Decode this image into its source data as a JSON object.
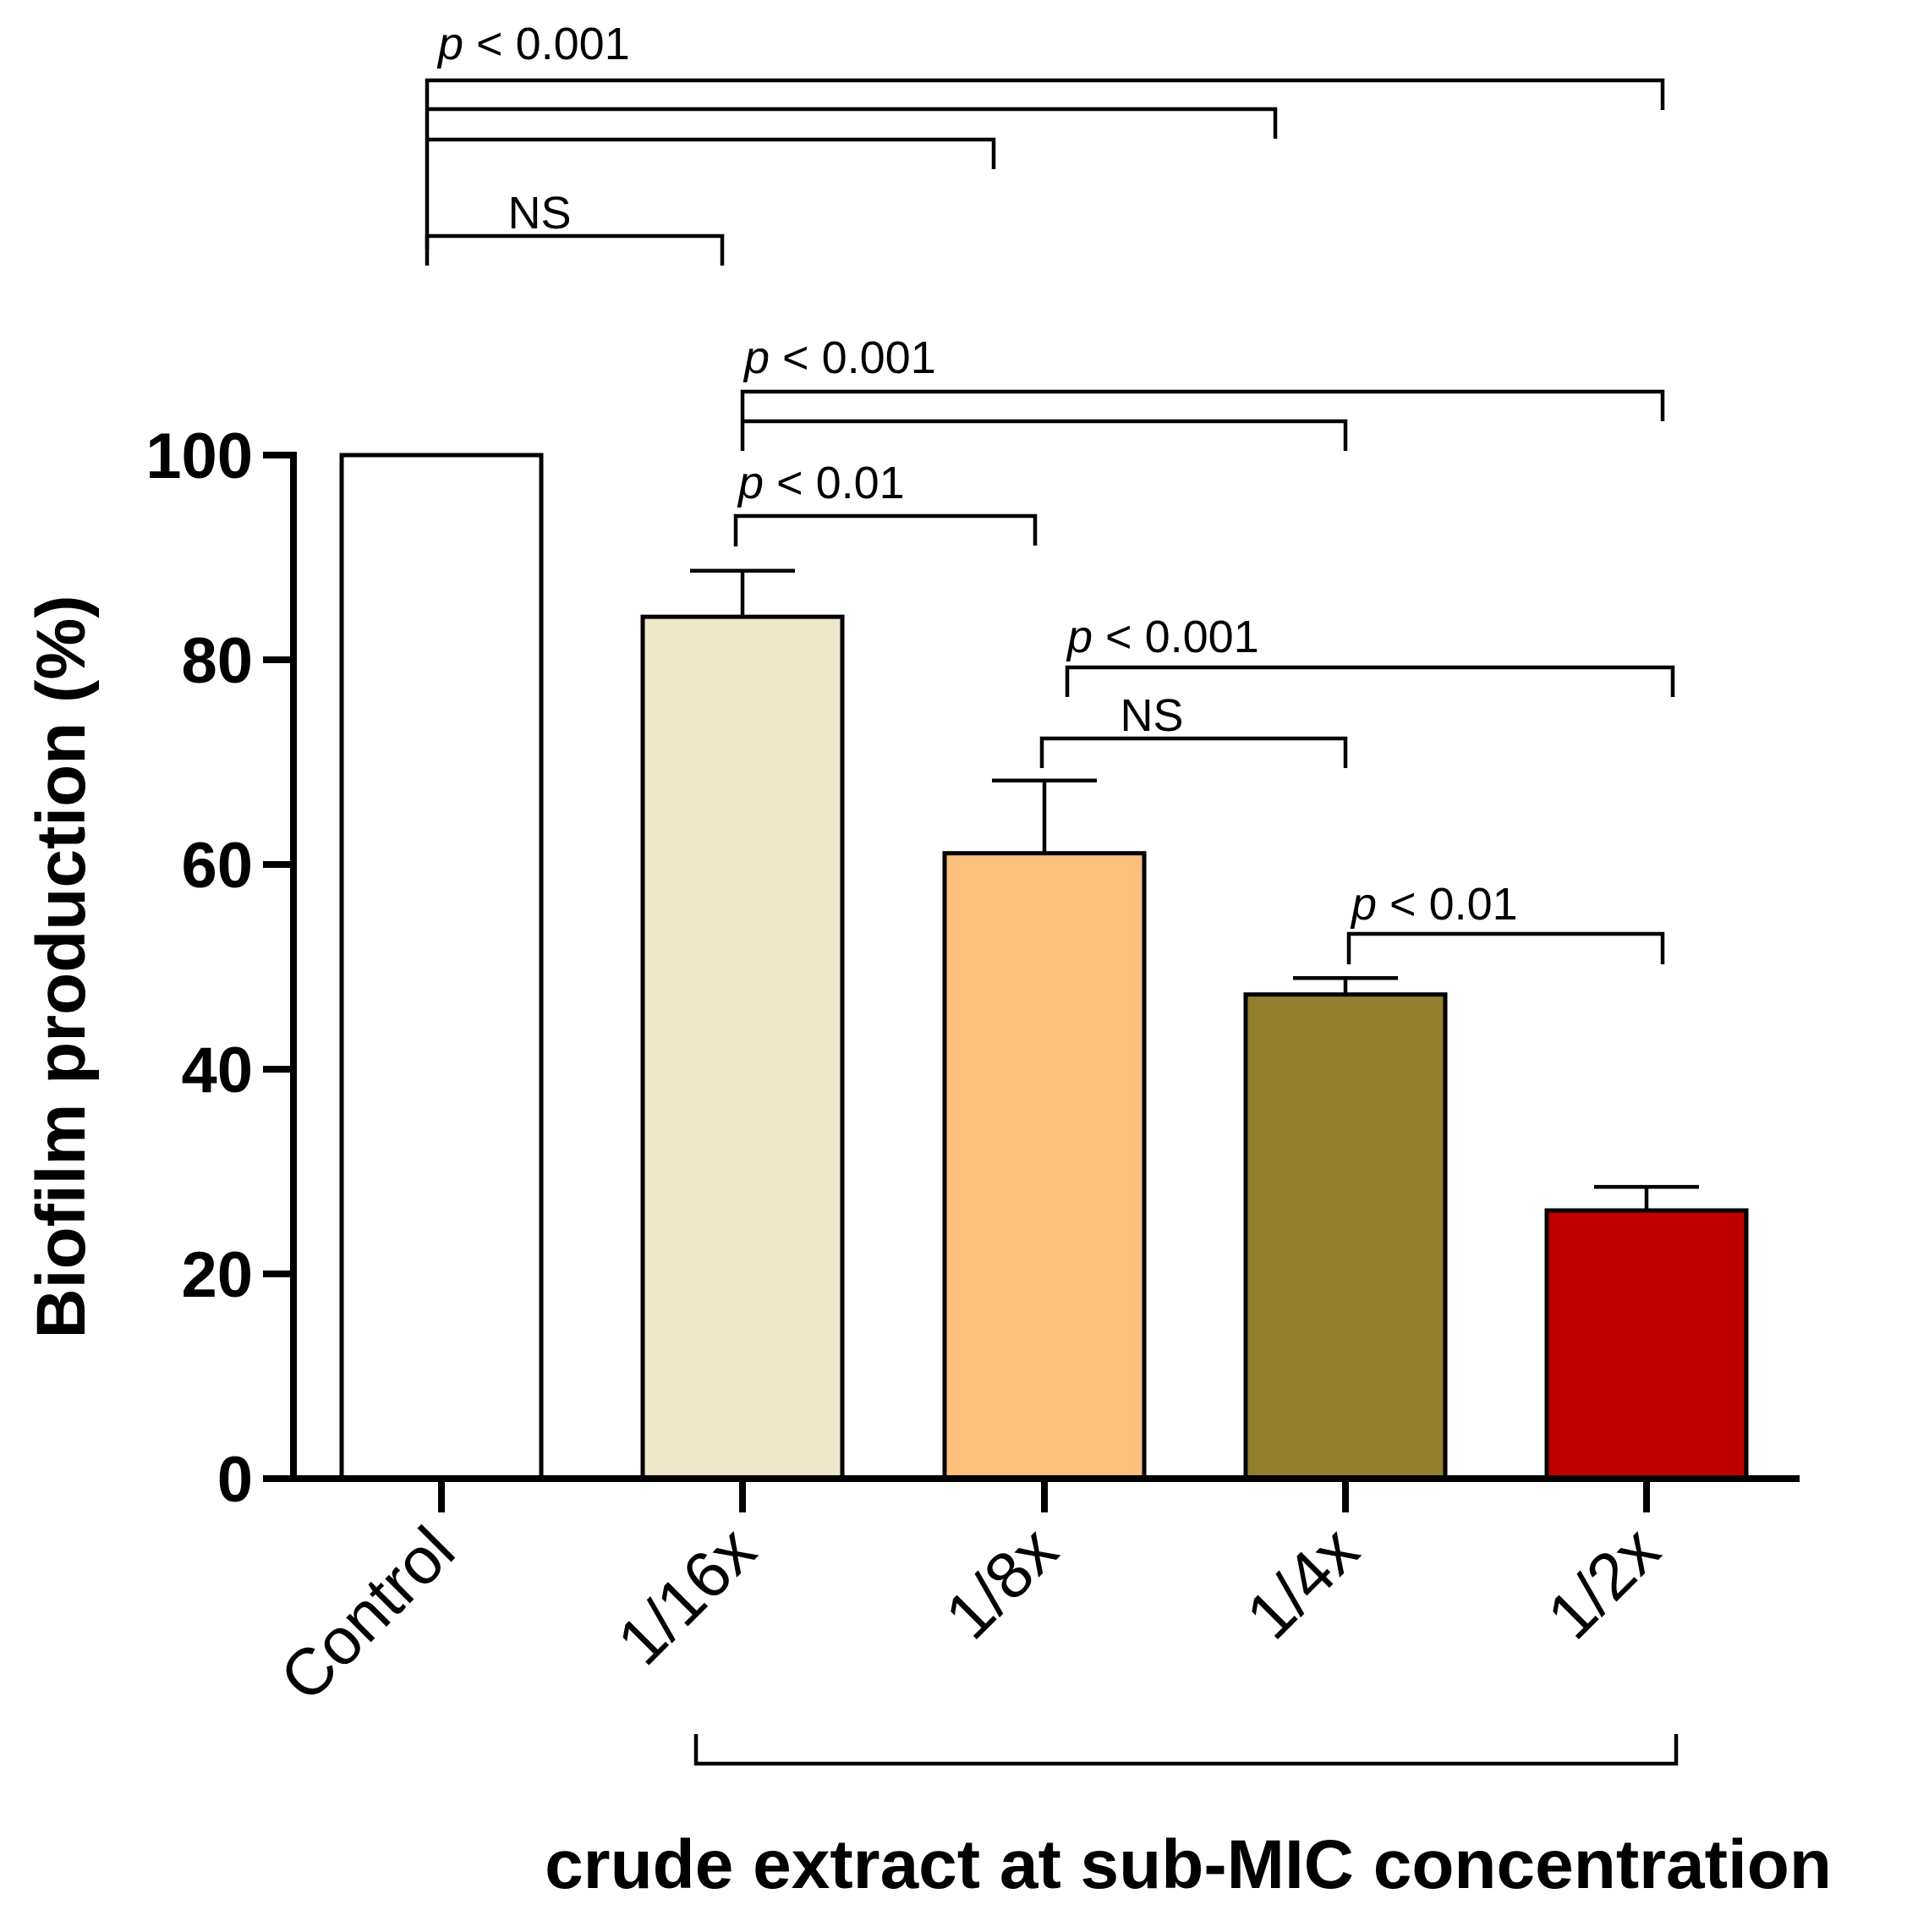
{
  "chart_data": {
    "type": "bar",
    "categories": [
      "Control",
      "1/16x",
      "1/8x",
      "1/4x",
      "1/2x"
    ],
    "values": [
      100,
      84.2,
      61.1,
      47.3,
      26.2
    ],
    "errors": [
      0,
      4.5,
      7.1,
      1.6,
      2.3
    ],
    "colors": [
      "#ffffff",
      "#ede6c9",
      "#fcc07f",
      "#947f2f",
      "#bf0000"
    ],
    "ylabel": "Biofilm production (%)",
    "xlabel": "crude extract at sub-MIC concentration",
    "xlabel_group_span": [
      1,
      4
    ],
    "ylim": [
      0,
      100
    ],
    "yticks": [
      0,
      20,
      40,
      60,
      80,
      100
    ],
    "ytick_labels": [
      "0",
      "20",
      "40",
      "60",
      "80",
      "100"
    ],
    "comparisons": [
      {
        "group": "control_top",
        "pairs": [
          [
            0,
            4
          ],
          [
            0,
            3
          ],
          [
            0,
            2
          ]
        ],
        "label": "p < 0.001"
      },
      {
        "group": "control_ns",
        "pairs": [
          [
            0,
            1
          ]
        ],
        "label": "NS"
      },
      {
        "group": "sixteenth_far",
        "pairs": [
          [
            1,
            4
          ],
          [
            1,
            3
          ]
        ],
        "label": "p < 0.001"
      },
      {
        "group": "sixteenth_eighth",
        "pairs": [
          [
            1,
            2
          ]
        ],
        "label": "p < 0.01"
      },
      {
        "group": "eighth_half",
        "pairs": [
          [
            2,
            4
          ]
        ],
        "label": "p < 0.001"
      },
      {
        "group": "eighth_quarter",
        "pairs": [
          [
            2,
            3
          ]
        ],
        "label": "NS"
      },
      {
        "group": "quarter_half",
        "pairs": [
          [
            3,
            4
          ]
        ],
        "label": "p < 0.01"
      }
    ]
  }
}
